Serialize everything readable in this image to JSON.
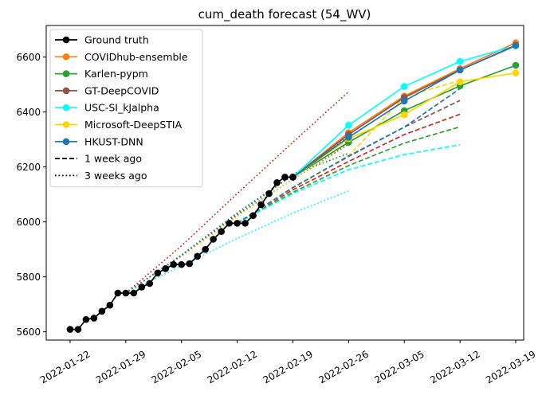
{
  "chart_data": {
    "type": "line",
    "title": "cum_death forecast (54_WV)",
    "xlabel": "",
    "ylabel": "",
    "x_axis_type": "date",
    "xlim": [
      "2022-01-19",
      "2022-03-20"
    ],
    "ylim": [
      5570,
      6715
    ],
    "x_ticks": [
      "2022-01-22",
      "2022-01-29",
      "2022-02-05",
      "2022-02-12",
      "2022-02-19",
      "2022-02-26",
      "2022-03-05",
      "2022-03-12",
      "2022-03-19"
    ],
    "y_ticks": [
      5600,
      5800,
      6000,
      6200,
      6400,
      6600
    ],
    "grid": false,
    "legend_position": "top-left",
    "legend": [
      {
        "label": "Ground truth",
        "color": "#000000",
        "style": "solid",
        "marker": true
      },
      {
        "label": "COVIDhub-ensemble",
        "color": "#ff7f0e",
        "style": "solid",
        "marker": true
      },
      {
        "label": "Karlen-pypm",
        "color": "#2ca02c",
        "style": "solid",
        "marker": true
      },
      {
        "label": "GT-DeepCOVID",
        "color": "#8c564b",
        "style": "solid",
        "marker": true
      },
      {
        "label": "USC-SI_kJalpha",
        "color": "#00ffff",
        "style": "solid",
        "marker": true
      },
      {
        "label": "Microsoft-DeepSTIA",
        "color": "#ffd700",
        "style": "solid",
        "marker": true
      },
      {
        "label": "HKUST-DNN",
        "color": "#1f77b4",
        "style": "solid",
        "marker": true
      },
      {
        "label": "1 week ago",
        "color": "#000000",
        "style": "dashed",
        "marker": false
      },
      {
        "label": "3 weeks ago",
        "color": "#000000",
        "style": "dotted",
        "marker": false
      }
    ],
    "ground_truth": {
      "color": "#000000",
      "x": [
        "2022-01-22",
        "2022-01-23",
        "2022-01-24",
        "2022-01-25",
        "2022-01-26",
        "2022-01-27",
        "2022-01-28",
        "2022-01-29",
        "2022-01-30",
        "2022-01-31",
        "2022-02-01",
        "2022-02-02",
        "2022-02-03",
        "2022-02-04",
        "2022-02-05",
        "2022-02-06",
        "2022-02-07",
        "2022-02-08",
        "2022-02-09",
        "2022-02-10",
        "2022-02-11",
        "2022-02-12",
        "2022-02-13",
        "2022-02-14",
        "2022-02-15",
        "2022-02-16",
        "2022-02-17",
        "2022-02-18",
        "2022-02-19"
      ],
      "y": [
        5609,
        5609,
        5645,
        5650,
        5675,
        5697,
        5741,
        5741,
        5741,
        5763,
        5776,
        5814,
        5830,
        5845,
        5845,
        5848,
        5875,
        5900,
        5937,
        5965,
        5995,
        5995,
        5995,
        6023,
        6063,
        6103,
        6143,
        6163,
        6163
      ]
    },
    "forecasts_current": [
      {
        "name": "COVIDhub-ensemble",
        "color": "#ff7f0e",
        "x": [
          "2022-02-19",
          "2022-02-26",
          "2022-03-05",
          "2022-03-12",
          "2022-03-19"
        ],
        "y": [
          6163,
          6325,
          6458,
          6558,
          6652
        ]
      },
      {
        "name": "Karlen-pypm",
        "color": "#2ca02c",
        "x": [
          "2022-02-19",
          "2022-02-26",
          "2022-03-05",
          "2022-03-12",
          "2022-03-19"
        ],
        "y": [
          6163,
          6290,
          6405,
          6495,
          6570
        ]
      },
      {
        "name": "GT-DeepCOVID",
        "color": "#8c564b",
        "x": [
          "2022-02-19",
          "2022-02-26",
          "2022-03-05",
          "2022-03-12",
          "2022-03-19"
        ],
        "y": [
          6163,
          6318,
          6453,
          6553,
          6641
        ]
      },
      {
        "name": "USC-SI_kJalpha",
        "color": "#00ffff",
        "x": [
          "2022-02-19",
          "2022-02-26",
          "2022-03-05",
          "2022-03-12",
          "2022-03-19"
        ],
        "y": [
          6163,
          6352,
          6493,
          6584,
          6641
        ]
      },
      {
        "name": "Microsoft-DeepSTIA",
        "color": "#ffd700",
        "x": [
          "2022-02-19",
          "2022-02-26",
          "2022-03-05",
          "2022-03-12",
          "2022-03-19"
        ],
        "y": [
          6163,
          6303,
          6390,
          6510,
          6542
        ]
      },
      {
        "name": "HKUST-DNN",
        "color": "#1f77b4",
        "x": [
          "2022-02-19",
          "2022-02-26",
          "2022-03-05",
          "2022-03-12",
          "2022-03-19"
        ],
        "y": [
          6163,
          6308,
          6440,
          6553,
          6643
        ]
      }
    ],
    "forecasts_1_week_ago": [
      {
        "name": "COVIDhub-ensemble",
        "color": "#d62728",
        "x": [
          "2022-02-12",
          "2022-02-19",
          "2022-02-26",
          "2022-03-05",
          "2022-03-12"
        ],
        "y": [
          5995,
          6117,
          6220,
          6318,
          6392
        ]
      },
      {
        "name": "Karlen-pypm",
        "color": "#2ca02c",
        "x": [
          "2022-02-12",
          "2022-02-19",
          "2022-02-26",
          "2022-03-05",
          "2022-03-12"
        ],
        "y": [
          5995,
          6108,
          6205,
          6287,
          6346
        ]
      },
      {
        "name": "GT-DeepCOVID",
        "color": "#8c564b",
        "x": [
          "2022-02-12",
          "2022-02-19",
          "2022-02-26",
          "2022-03-05",
          "2022-03-12"
        ],
        "y": [
          5995,
          6125,
          6238,
          6345,
          6442
        ]
      },
      {
        "name": "USC-SI_kJalpha",
        "color": "#00ffff",
        "x": [
          "2022-02-12",
          "2022-02-19",
          "2022-02-26",
          "2022-03-05",
          "2022-03-12"
        ],
        "y": [
          5995,
          6103,
          6190,
          6245,
          6281
        ]
      },
      {
        "name": "Microsoft-DeepSTIA",
        "color": "#ffd700",
        "x": [
          "2022-02-12",
          "2022-02-19",
          "2022-02-26",
          "2022-03-05",
          "2022-03-12"
        ],
        "y": [
          5995,
          6123,
          6240,
          6455,
          6515
        ]
      },
      {
        "name": "HKUST-DNN",
        "color": "#1f77b4",
        "x": [
          "2022-02-12",
          "2022-02-19",
          "2022-02-26",
          "2022-03-05",
          "2022-03-12"
        ],
        "y": [
          5995,
          6125,
          6240,
          6345,
          6485
        ]
      }
    ],
    "forecasts_3_weeks_ago": [
      {
        "name": "COVIDhub-ensemble",
        "color": "#d62728",
        "x": [
          "2022-01-29",
          "2022-02-05",
          "2022-02-12",
          "2022-02-19",
          "2022-02-26"
        ],
        "y": [
          5741,
          5913,
          6103,
          6290,
          6474
        ]
      },
      {
        "name": "Karlen-pypm",
        "color": "#2ca02c",
        "x": [
          "2022-01-29",
          "2022-02-05",
          "2022-02-12",
          "2022-02-19",
          "2022-02-26"
        ],
        "y": [
          5741,
          5880,
          6033,
          6173,
          6250
        ]
      },
      {
        "name": "GT-DeepCOVID",
        "color": "#8c564b",
        "x": [
          "2022-01-29",
          "2022-02-05",
          "2022-02-12",
          "2022-02-19",
          "2022-02-26"
        ],
        "y": [
          5741,
          5878,
          6025,
          6155,
          6283
        ]
      },
      {
        "name": "USC-SI_kJalpha",
        "color": "#00ffff",
        "x": [
          "2022-01-29",
          "2022-02-05",
          "2022-02-12",
          "2022-02-19",
          "2022-02-26"
        ],
        "y": [
          5741,
          5840,
          5940,
          6032,
          6113
        ]
      },
      {
        "name": "Microsoft-DeepSTIA",
        "color": "#ffd700",
        "x": [
          "2022-01-29",
          "2022-02-05",
          "2022-02-12",
          "2022-02-19",
          "2022-02-26"
        ],
        "y": [
          5741,
          5874,
          6020,
          6155,
          6290
        ]
      },
      {
        "name": "HKUST-DNN",
        "color": "#1f77b4",
        "x": [
          "2022-01-29",
          "2022-02-05",
          "2022-02-12",
          "2022-02-19",
          "2022-02-26"
        ],
        "y": [
          5741,
          5878,
          6030,
          6170,
          6310
        ]
      }
    ]
  }
}
